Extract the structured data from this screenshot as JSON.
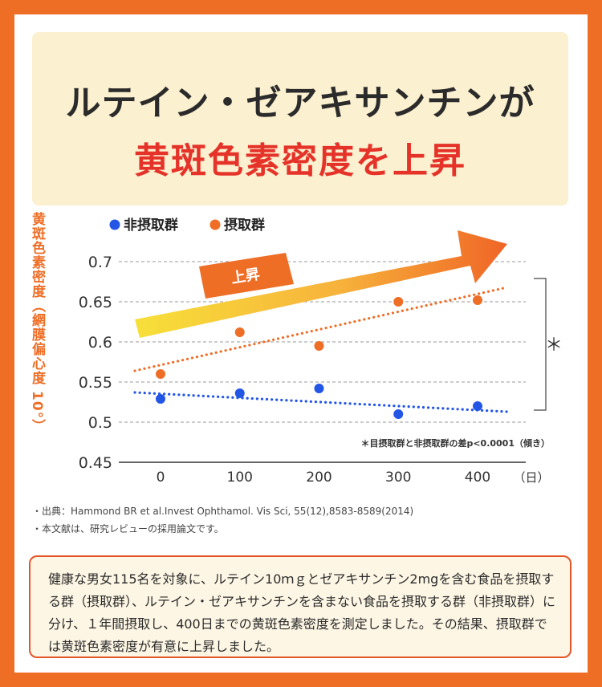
{
  "banner": {
    "line1": "ルテイン・ゼアキサンチンが",
    "line2": "黄斑色素密度を上昇"
  },
  "colors": {
    "background": "#ee6e26",
    "banner_bg": "#fbf0cf",
    "title_dark": "#2b2b2b",
    "title_red": "#e5332a",
    "non_intake": "#2456e6",
    "intake": "#ee6e26"
  },
  "chart_data": {
    "type": "scatter",
    "ylabel": "黄斑色素密度（網膜偏心度 10°）",
    "xunit": "（日）",
    "x": [
      0,
      100,
      200,
      300,
      400
    ],
    "ylim": [
      0.45,
      0.7
    ],
    "yticks": [
      "0.7",
      "0.65",
      "0.6",
      "0.55",
      "0.5",
      "0.45"
    ],
    "xticks": [
      "0",
      "100",
      "200",
      "300",
      "400"
    ],
    "grid": true,
    "legend_position": "top-left",
    "series": [
      {
        "name": "非摂取群",
        "color": "#2456e6",
        "values": [
          0.529,
          0.536,
          0.542,
          0.51,
          0.52
        ],
        "trend": [
          0.537,
          0.513
        ]
      },
      {
        "name": "摂取群",
        "color": "#ee6e26",
        "values": [
          0.56,
          0.612,
          0.595,
          0.65,
          0.652
        ],
        "trend": [
          0.564,
          0.668
        ]
      }
    ],
    "annotations": {
      "arrow_label": "上昇",
      "significance_mark": "＊",
      "note": "＊目摂取群と非摂取群の差p<0.0001（傾き）"
    }
  },
  "sources": [
    "・出典：Hammond BR et al.Invest Ophthamol. Vis Sci, 55(12),8583-8589(2014)",
    "・本文献は、研究レビューの採用論文です。"
  ],
  "summary": "健康な男女115名を対象に、ルテイン10ｍｇとゼアキサンチン2mgを含む食品を摂取する群（摂取群）、ルテイン・ゼアキサンチンを含まない食品を摂取する群（非摂取群）に分け、１年間摂取し、400日までの黄斑色素密度を測定しました。その結果、摂取群では黄斑色素密度が有意に上昇しました。"
}
